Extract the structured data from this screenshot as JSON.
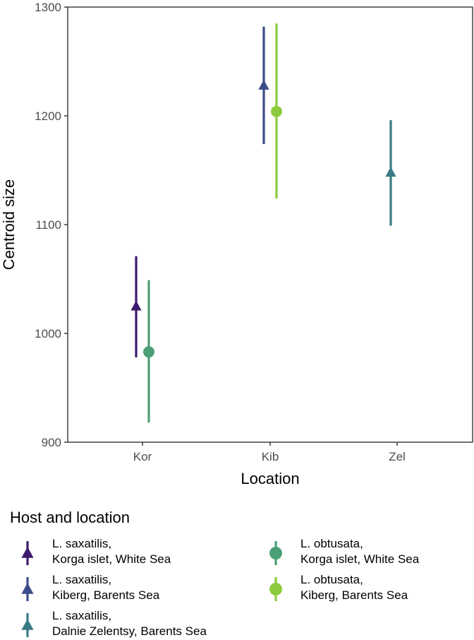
{
  "chart_data": {
    "type": "scatter",
    "title": "",
    "xlabel": "Location",
    "ylabel": "Centroid size",
    "categories": [
      "Kor",
      "Kib",
      "Zel"
    ],
    "yticks": [
      900,
      1000,
      1100,
      1200,
      1300
    ],
    "ylim": [
      900,
      1300
    ],
    "grid": false,
    "legend": {
      "title": "Host and location",
      "placement": "bottom",
      "entries": [
        {
          "line1": "L. saxatilis,",
          "line2": "Korga islet, White Sea",
          "shape": "triangle",
          "color": "#3b1a6e"
        },
        {
          "line1": "L. saxatilis,",
          "line2": "Kiberg, Barents Sea",
          "shape": "triangle",
          "color": "#3b4d8a"
        },
        {
          "line1": "L. saxatilis,",
          "line2": "Dalnie Zelentsy, Barents Sea",
          "shape": "triangle",
          "color": "#3a7a84"
        },
        {
          "line1": "L. obtusata,",
          "line2": "Korga islet, White Sea",
          "shape": "circle",
          "color": "#4aa074"
        },
        {
          "line1": "L. obtusata,",
          "line2": "Kiberg, Barents Sea",
          "shape": "circle",
          "color": "#8ccb3e"
        }
      ]
    },
    "series": [
      {
        "category": "Kor",
        "group": "saxatilis",
        "mean": 1025,
        "lower": 978,
        "upper": 1071,
        "shape": "triangle",
        "color": "#3b1a6e"
      },
      {
        "category": "Kor",
        "group": "obtusata",
        "mean": 983,
        "lower": 918,
        "upper": 1049,
        "shape": "circle",
        "color": "#4aa074"
      },
      {
        "category": "Kib",
        "group": "saxatilis",
        "mean": 1228,
        "lower": 1174,
        "upper": 1282,
        "shape": "triangle",
        "color": "#3b4d8a"
      },
      {
        "category": "Kib",
        "group": "obtusata",
        "mean": 1204,
        "lower": 1124,
        "upper": 1285,
        "shape": "circle",
        "color": "#8ccb3e"
      },
      {
        "category": "Zel",
        "group": "saxatilis",
        "mean": 1148,
        "lower": 1099,
        "upper": 1196,
        "shape": "triangle",
        "color": "#3a7a84"
      }
    ]
  }
}
